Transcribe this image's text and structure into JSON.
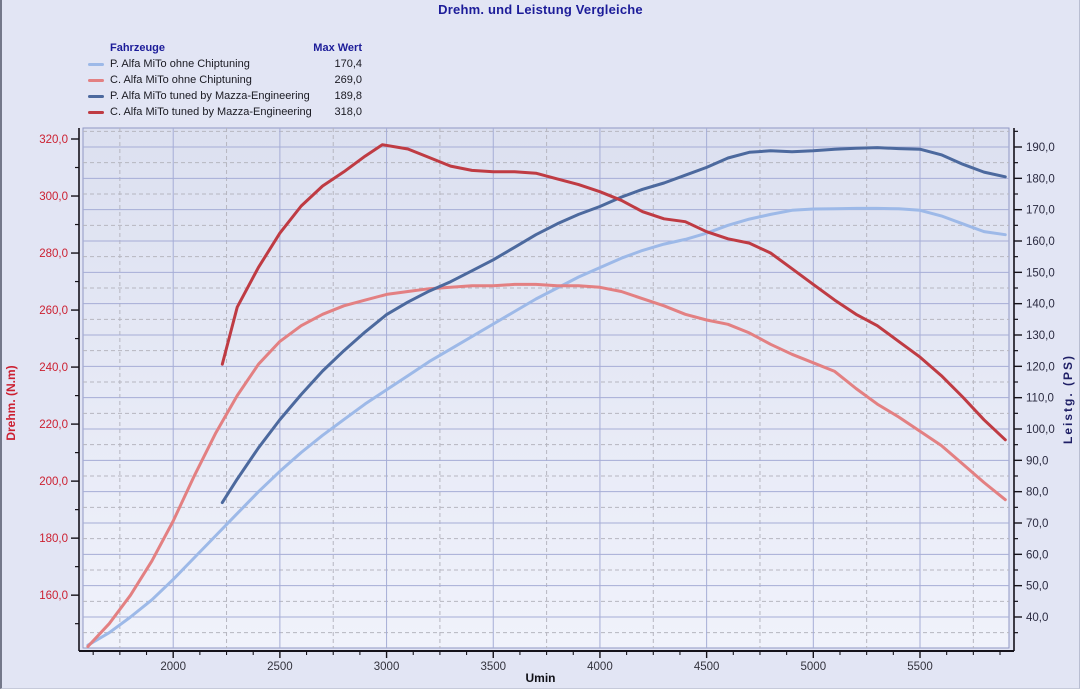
{
  "window": {
    "title": "Drehm. und Leistung Vergleiche"
  },
  "legend": {
    "header": {
      "vehicles": "Fahrzeuge",
      "max": "Max Wert"
    },
    "items": [
      {
        "label": "P. Alfa MiTo ohne Chiptuning",
        "max": "170,4",
        "color": "#9db9e8"
      },
      {
        "label": "C. Alfa MiTo ohne Chiptuning",
        "max": "269,0",
        "color": "#e38082"
      },
      {
        "label": "P. Alfa MiTo tuned by Mazza-Engineering",
        "max": "189,8",
        "color": "#4c699e"
      },
      {
        "label": "C. Alfa MiTo tuned by Mazza-Engineering",
        "max": "318,0",
        "color": "#bf3b43"
      }
    ]
  },
  "chart_data": {
    "type": "line",
    "title": "Drehm. und Leistung Vergleiche",
    "xlabel": "Umin",
    "grid": "on",
    "legend_position": "top-left",
    "x_axis": {
      "ticks": [
        2000,
        2500,
        3000,
        3500,
        4000,
        4500,
        5000,
        5500
      ],
      "minor_step": 125,
      "lim": [
        1577,
        5917
      ],
      "tick_color": "#33333d"
    },
    "left_axis": {
      "label": "Drehm. (N.m)",
      "unit": "N.m",
      "ticks": [
        320,
        300,
        280,
        260,
        240,
        220,
        200,
        180,
        160
      ],
      "minor_step": 10,
      "lim": [
        141.5,
        323.9
      ],
      "tick_color": "#cc1f30"
    },
    "right_axis": {
      "label": "Leistg. (PS)",
      "unit": "PS",
      "ticks": [
        190,
        180,
        170,
        160,
        150,
        140,
        130,
        120,
        110,
        100,
        90,
        80,
        70,
        60,
        50,
        40
      ],
      "minor_step": 5,
      "lim": [
        30.1,
        196.1
      ],
      "tick_color": "#2a2a40"
    },
    "gridline_colors": {
      "solid": "#a6add6",
      "dashed": "#b6b6c0"
    },
    "series": [
      {
        "name": "P. Alfa MiTo ohne Chiptuning",
        "axis": "right",
        "color": "#9db9e8",
        "max": 170.4,
        "points": [
          [
            1600,
            31
          ],
          [
            1700,
            35
          ],
          [
            1800,
            40
          ],
          [
            1900,
            45.5
          ],
          [
            2000,
            52
          ],
          [
            2100,
            59
          ],
          [
            2200,
            66
          ],
          [
            2300,
            73
          ],
          [
            2400,
            80
          ],
          [
            2500,
            86.5
          ],
          [
            2600,
            92.5
          ],
          [
            2700,
            98
          ],
          [
            2800,
            103
          ],
          [
            2900,
            108
          ],
          [
            3000,
            112.5
          ],
          [
            3100,
            117
          ],
          [
            3200,
            121.5
          ],
          [
            3300,
            125.5
          ],
          [
            3400,
            129.5
          ],
          [
            3500,
            133.5
          ],
          [
            3600,
            137.5
          ],
          [
            3700,
            141.5
          ],
          [
            3800,
            145
          ],
          [
            3900,
            148.5
          ],
          [
            4000,
            151.5
          ],
          [
            4100,
            154.5
          ],
          [
            4200,
            157
          ],
          [
            4300,
            159
          ],
          [
            4400,
            160.5
          ],
          [
            4500,
            162.5
          ],
          [
            4600,
            165
          ],
          [
            4700,
            167
          ],
          [
            4800,
            168.5
          ],
          [
            4900,
            169.8
          ],
          [
            5000,
            170.2
          ],
          [
            5100,
            170.3
          ],
          [
            5200,
            170.4
          ],
          [
            5300,
            170.4
          ],
          [
            5400,
            170.3
          ],
          [
            5500,
            169.8
          ],
          [
            5600,
            168
          ],
          [
            5700,
            165.5
          ],
          [
            5800,
            163
          ],
          [
            5900,
            162
          ]
        ]
      },
      {
        "name": "C. Alfa MiTo ohne Chiptuning",
        "axis": "left",
        "color": "#e38082",
        "max": 269.0,
        "points": [
          [
            1600,
            142
          ],
          [
            1700,
            150
          ],
          [
            1800,
            160
          ],
          [
            1900,
            172
          ],
          [
            2000,
            186
          ],
          [
            2100,
            202
          ],
          [
            2200,
            217
          ],
          [
            2300,
            230
          ],
          [
            2400,
            241
          ],
          [
            2500,
            249
          ],
          [
            2600,
            254.5
          ],
          [
            2700,
            258.5
          ],
          [
            2800,
            261.5
          ],
          [
            2900,
            263.5
          ],
          [
            3000,
            265.5
          ],
          [
            3100,
            266.5
          ],
          [
            3200,
            267.5
          ],
          [
            3300,
            268
          ],
          [
            3400,
            268.5
          ],
          [
            3500,
            268.5
          ],
          [
            3600,
            269
          ],
          [
            3700,
            269
          ],
          [
            3800,
            268.5
          ],
          [
            3900,
            268.5
          ],
          [
            4000,
            268
          ],
          [
            4100,
            266.5
          ],
          [
            4200,
            264
          ],
          [
            4300,
            261.5
          ],
          [
            4400,
            258.5
          ],
          [
            4500,
            256.5
          ],
          [
            4600,
            255
          ],
          [
            4700,
            252
          ],
          [
            4800,
            248
          ],
          [
            4900,
            244.5
          ],
          [
            5000,
            241.5
          ],
          [
            5100,
            238.5
          ],
          [
            5200,
            232.5
          ],
          [
            5300,
            227
          ],
          [
            5400,
            222.5
          ],
          [
            5500,
            217.5
          ],
          [
            5600,
            212.5
          ],
          [
            5700,
            206
          ],
          [
            5800,
            199.5
          ],
          [
            5900,
            193.5
          ]
        ]
      },
      {
        "name": "P. Alfa MiTo tuned by Mazza-Engineering",
        "axis": "right",
        "color": "#4c699e",
        "max": 189.8,
        "points": [
          [
            2230,
            76.5
          ],
          [
            2300,
            84
          ],
          [
            2400,
            94
          ],
          [
            2500,
            103
          ],
          [
            2600,
            111
          ],
          [
            2700,
            118.5
          ],
          [
            2800,
            125
          ],
          [
            2900,
            131
          ],
          [
            3000,
            136.5
          ],
          [
            3100,
            140.5
          ],
          [
            3200,
            144
          ],
          [
            3300,
            147
          ],
          [
            3400,
            150.5
          ],
          [
            3500,
            154
          ],
          [
            3600,
            158
          ],
          [
            3700,
            162
          ],
          [
            3800,
            165.5
          ],
          [
            3900,
            168.5
          ],
          [
            4000,
            171
          ],
          [
            4100,
            174
          ],
          [
            4200,
            176.5
          ],
          [
            4300,
            178.5
          ],
          [
            4400,
            181
          ],
          [
            4500,
            183.5
          ],
          [
            4600,
            186.5
          ],
          [
            4700,
            188.3
          ],
          [
            4800,
            188.8
          ],
          [
            4900,
            188.5
          ],
          [
            5000,
            188.8
          ],
          [
            5100,
            189.3
          ],
          [
            5200,
            189.6
          ],
          [
            5300,
            189.8
          ],
          [
            5400,
            189.5
          ],
          [
            5500,
            189.3
          ],
          [
            5600,
            187.5
          ],
          [
            5700,
            184.5
          ],
          [
            5800,
            182
          ],
          [
            5900,
            180.5
          ]
        ]
      },
      {
        "name": "C. Alfa MiTo tuned by Mazza-Engineering",
        "axis": "left",
        "color": "#bf3b43",
        "max": 318.0,
        "points": [
          [
            2230,
            241
          ],
          [
            2300,
            261
          ],
          [
            2400,
            275
          ],
          [
            2500,
            287
          ],
          [
            2600,
            296.5
          ],
          [
            2700,
            303.5
          ],
          [
            2800,
            308.5
          ],
          [
            2900,
            314
          ],
          [
            2980,
            318
          ],
          [
            3100,
            316.5
          ],
          [
            3200,
            313.5
          ],
          [
            3300,
            310.5
          ],
          [
            3400,
            309
          ],
          [
            3500,
            308.5
          ],
          [
            3600,
            308.5
          ],
          [
            3700,
            308
          ],
          [
            3800,
            306
          ],
          [
            3900,
            304
          ],
          [
            4000,
            301.5
          ],
          [
            4100,
            298.5
          ],
          [
            4200,
            294.5
          ],
          [
            4300,
            292
          ],
          [
            4400,
            291
          ],
          [
            4500,
            287.5
          ],
          [
            4600,
            285
          ],
          [
            4700,
            283.5
          ],
          [
            4800,
            280
          ],
          [
            4900,
            274.5
          ],
          [
            5000,
            269
          ],
          [
            5100,
            263.5
          ],
          [
            5200,
            258.5
          ],
          [
            5300,
            254.5
          ],
          [
            5400,
            249
          ],
          [
            5500,
            243.5
          ],
          [
            5600,
            237
          ],
          [
            5700,
            229.5
          ],
          [
            5800,
            221.5
          ],
          [
            5900,
            214.5
          ]
        ]
      }
    ]
  }
}
